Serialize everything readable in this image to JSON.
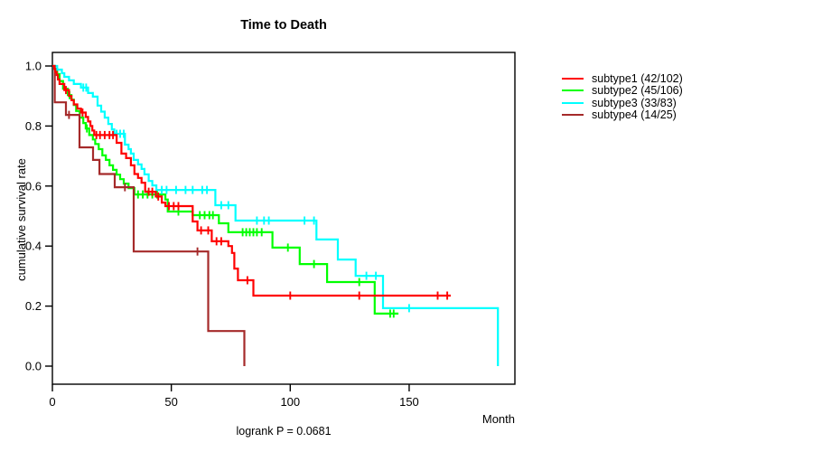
{
  "chart_data": {
    "type": "line",
    "subtype": "kaplan-meier-step",
    "title": "Time to Death",
    "xlabel": "Month",
    "ylabel": "cumulative survival rate",
    "caption": "logrank P = 0.0681",
    "x_ticks": [
      0,
      50,
      100,
      150
    ],
    "x_tick_labels": [
      "0",
      "50",
      "100",
      "150"
    ],
    "y_ticks": [
      0.0,
      0.2,
      0.4,
      0.6,
      0.8,
      1.0
    ],
    "y_tick_labels": [
      "0.0",
      "0.2",
      "0.4",
      "0.6",
      "0.8",
      "1.0"
    ],
    "xlim": [
      0,
      194.5
    ],
    "ylim": [
      0,
      1
    ],
    "grid": false,
    "legend_position": "right-outside",
    "axis_color": "#000000",
    "series": [
      {
        "name": "subtype1 (42/102)",
        "color": "#ff0000",
        "end": 167.5,
        "end_drop": false,
        "drops": [
          [
            0.8,
            0.99
          ],
          [
            1.2,
            0.98
          ],
          [
            1.8,
            0.97
          ],
          [
            2.3,
            0.955
          ],
          [
            3,
            0.94
          ],
          [
            5,
            0.92
          ],
          [
            7,
            0.9
          ],
          [
            8,
            0.886
          ],
          [
            9,
            0.872
          ],
          [
            10.5,
            0.858
          ],
          [
            12,
            0.845
          ],
          [
            14,
            0.83
          ],
          [
            15,
            0.815
          ],
          [
            16,
            0.8
          ],
          [
            16.8,
            0.785
          ],
          [
            17.6,
            0.77
          ],
          [
            27,
            0.744
          ],
          [
            29,
            0.708
          ],
          [
            31,
            0.693
          ],
          [
            33,
            0.669
          ],
          [
            34.5,
            0.64
          ],
          [
            36,
            0.627
          ],
          [
            37.5,
            0.611
          ],
          [
            39,
            0.581
          ],
          [
            43.5,
            0.565
          ],
          [
            46,
            0.545
          ],
          [
            47.5,
            0.533
          ],
          [
            59,
            0.482
          ],
          [
            61,
            0.452
          ],
          [
            67,
            0.416
          ],
          [
            74,
            0.4
          ],
          [
            75.5,
            0.377
          ],
          [
            76.5,
            0.325
          ],
          [
            78,
            0.286
          ],
          [
            84.5,
            0.235
          ]
        ],
        "censors": [
          [
            5.7,
            0.92
          ],
          [
            12.7,
            0.845
          ],
          [
            18.5,
            0.77
          ],
          [
            20,
            0.77
          ],
          [
            22,
            0.77
          ],
          [
            24,
            0.77
          ],
          [
            25.5,
            0.77
          ],
          [
            40.5,
            0.581
          ],
          [
            42,
            0.581
          ],
          [
            44.5,
            0.565
          ],
          [
            49,
            0.533
          ],
          [
            51,
            0.533
          ],
          [
            53,
            0.533
          ],
          [
            62.5,
            0.452
          ],
          [
            65.5,
            0.452
          ],
          [
            69,
            0.416
          ],
          [
            71,
            0.416
          ],
          [
            82,
            0.286
          ],
          [
            100,
            0.235
          ],
          [
            129,
            0.235
          ],
          [
            162,
            0.235
          ],
          [
            166,
            0.235
          ]
        ]
      },
      {
        "name": "subtype2 (45/106)",
        "color": "#00ff00",
        "end": 145.5,
        "end_drop": false,
        "drops": [
          [
            1,
            0.99
          ],
          [
            2,
            0.973
          ],
          [
            3,
            0.95
          ],
          [
            4.5,
            0.924
          ],
          [
            6.5,
            0.903
          ],
          [
            8,
            0.888
          ],
          [
            9,
            0.87
          ],
          [
            10,
            0.85
          ],
          [
            11.5,
            0.828
          ],
          [
            13,
            0.81
          ],
          [
            14,
            0.792
          ],
          [
            15.5,
            0.77
          ],
          [
            17,
            0.755
          ],
          [
            18,
            0.74
          ],
          [
            19.5,
            0.723
          ],
          [
            21,
            0.702
          ],
          [
            22.5,
            0.687
          ],
          [
            24,
            0.669
          ],
          [
            25.5,
            0.654
          ],
          [
            27,
            0.638
          ],
          [
            28.5,
            0.623
          ],
          [
            30,
            0.608
          ],
          [
            32,
            0.593
          ],
          [
            34.5,
            0.572
          ],
          [
            47.5,
            0.555
          ],
          [
            48.5,
            0.515
          ],
          [
            59,
            0.503
          ],
          [
            70,
            0.476
          ],
          [
            74,
            0.446
          ],
          [
            92.5,
            0.395
          ],
          [
            104,
            0.34
          ],
          [
            115.5,
            0.28
          ],
          [
            135.5,
            0.175
          ]
        ],
        "censors": [
          [
            7.2,
            0.903
          ],
          [
            14.5,
            0.792
          ],
          [
            36,
            0.572
          ],
          [
            38,
            0.572
          ],
          [
            40,
            0.572
          ],
          [
            42,
            0.572
          ],
          [
            44,
            0.572
          ],
          [
            46,
            0.572
          ],
          [
            53,
            0.515
          ],
          [
            62,
            0.503
          ],
          [
            64,
            0.503
          ],
          [
            66,
            0.503
          ],
          [
            67.5,
            0.503
          ],
          [
            80,
            0.446
          ],
          [
            81.5,
            0.446
          ],
          [
            83,
            0.446
          ],
          [
            84.5,
            0.446
          ],
          [
            86,
            0.446
          ],
          [
            88,
            0.446
          ],
          [
            99,
            0.395
          ],
          [
            110,
            0.34
          ],
          [
            129,
            0.28
          ],
          [
            142,
            0.175
          ],
          [
            143.5,
            0.175
          ]
        ]
      },
      {
        "name": "subtype3 (33/83)",
        "color": "#00ffff",
        "end": 187.3,
        "end_drop": true,
        "drops": [
          [
            2,
            0.988
          ],
          [
            4,
            0.976
          ],
          [
            5,
            0.964
          ],
          [
            7,
            0.952
          ],
          [
            9,
            0.94
          ],
          [
            12,
            0.928
          ],
          [
            15,
            0.91
          ],
          [
            17,
            0.898
          ],
          [
            19,
            0.868
          ],
          [
            20.5,
            0.848
          ],
          [
            22,
            0.828
          ],
          [
            23.5,
            0.807
          ],
          [
            25,
            0.789
          ],
          [
            26,
            0.774
          ],
          [
            30.5,
            0.738
          ],
          [
            32,
            0.723
          ],
          [
            33,
            0.708
          ],
          [
            34.2,
            0.687
          ],
          [
            36,
            0.672
          ],
          [
            37.5,
            0.657
          ],
          [
            38.7,
            0.639
          ],
          [
            40.5,
            0.617
          ],
          [
            42,
            0.602
          ],
          [
            43.7,
            0.587
          ],
          [
            68.5,
            0.536
          ],
          [
            77,
            0.485
          ],
          [
            111,
            0.422
          ],
          [
            120,
            0.355
          ],
          [
            127.5,
            0.301
          ],
          [
            139,
            0.193
          ],
          [
            187.3,
            0.0
          ]
        ],
        "censors": [
          [
            13,
            0.928
          ],
          [
            14.2,
            0.928
          ],
          [
            27,
            0.774
          ],
          [
            28.5,
            0.774
          ],
          [
            30,
            0.774
          ],
          [
            46,
            0.587
          ],
          [
            48,
            0.587
          ],
          [
            52,
            0.587
          ],
          [
            56,
            0.587
          ],
          [
            59,
            0.587
          ],
          [
            63,
            0.587
          ],
          [
            65,
            0.587
          ],
          [
            71,
            0.536
          ],
          [
            74,
            0.536
          ],
          [
            86,
            0.485
          ],
          [
            89,
            0.485
          ],
          [
            91,
            0.485
          ],
          [
            106,
            0.485
          ],
          [
            110,
            0.485
          ],
          [
            132,
            0.301
          ],
          [
            136,
            0.301
          ],
          [
            150,
            0.193
          ]
        ]
      },
      {
        "name": "subtype4 (14/25)",
        "color": "#a52a2a",
        "end": 80.7,
        "end_drop": true,
        "drops": [
          [
            1,
            0.879
          ],
          [
            5.7,
            0.837
          ],
          [
            11.4,
            0.729
          ],
          [
            17.1,
            0.687
          ],
          [
            19.8,
            0.64
          ],
          [
            26.2,
            0.596
          ],
          [
            34.2,
            0.382
          ],
          [
            65.5,
            0.117
          ],
          [
            80.7,
            0.0
          ]
        ],
        "censors": [
          [
            7,
            0.837
          ],
          [
            30.5,
            0.596
          ],
          [
            61,
            0.382
          ]
        ]
      }
    ]
  }
}
